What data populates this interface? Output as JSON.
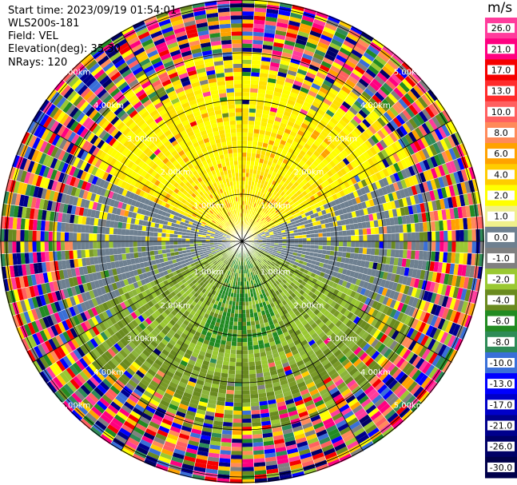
{
  "header": {
    "start_time": "Start time: 2023/09/19 01:54:01",
    "site": "WLS200s-181",
    "field": "Field: VEL",
    "elevation": "Elevation(deg): 35.30",
    "nrays": "NRays: 120"
  },
  "ring_labels": [
    "1.00km",
    "2.00km",
    "3.00km",
    "4.00km",
    "5.00km"
  ],
  "colorbar": {
    "unit": "m/s",
    "ticks": [
      "26.0",
      "21.0",
      "17.0",
      "13.0",
      "10.0",
      "8.0",
      "6.0",
      "4.0",
      "2.0",
      "1.0",
      "0.0",
      "-1.0",
      "-2.0",
      "-4.0",
      "-6.0",
      "-8.0",
      "-10.0",
      "-13.0",
      "-17.0",
      "-21.0",
      "-26.0",
      "-30.0"
    ],
    "colors": [
      "#ff3c9c",
      "#ff0080",
      "#f50000",
      "#ff2c2c",
      "#ff6060",
      "#ff8a5a",
      "#ffa200",
      "#ffcc00",
      "#ffff00",
      "#f0f08c",
      "#6e8090",
      "#808080",
      "#9ac832",
      "#6a8a20",
      "#228b22",
      "#2e8b57",
      "#3a6fd8",
      "#0000ff",
      "#0000c8",
      "#00008c",
      "#000066",
      "#00004a"
    ]
  }
}
